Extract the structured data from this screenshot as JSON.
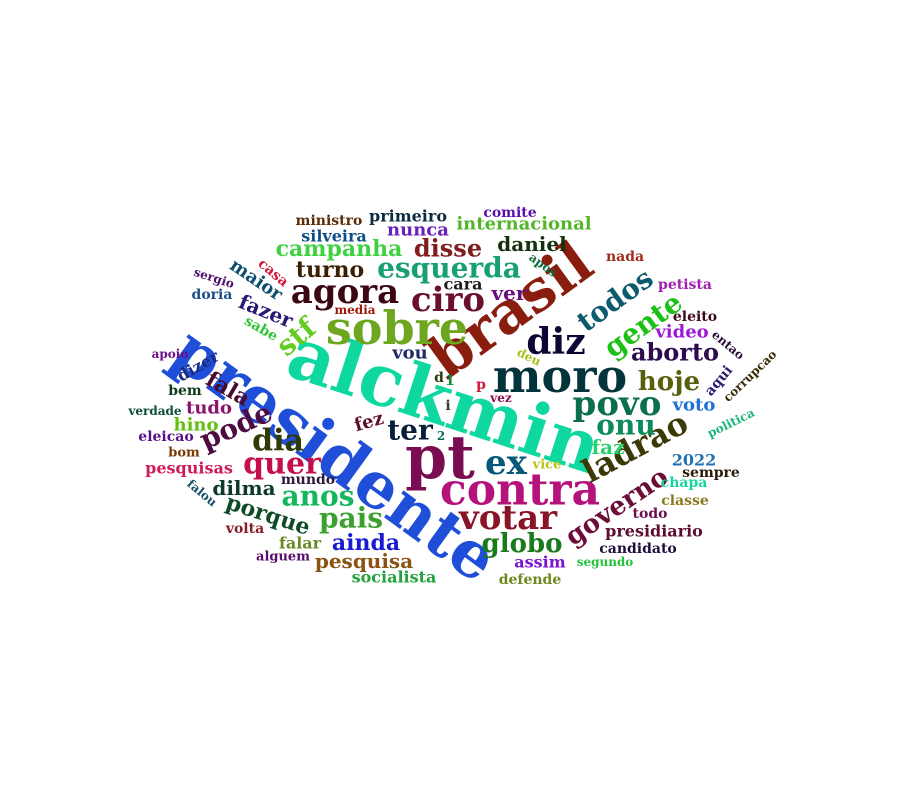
{
  "words": [
    {
      "text": "alckmin",
      "color": "#0ed89f"
    },
    {
      "text": "presidente",
      "color": "#1f4fd8"
    },
    {
      "text": "brasil",
      "color": "#8a1e0e"
    },
    {
      "text": "pt",
      "color": "#7a0d52"
    },
    {
      "text": "moro",
      "color": "#03343b"
    },
    {
      "text": "contra",
      "color": "#b5127c"
    },
    {
      "text": "sobre",
      "color": "#6da71f"
    },
    {
      "text": "diz",
      "color": "#0d0533"
    },
    {
      "text": "ex",
      "color": "#05587a"
    },
    {
      "text": "votar",
      "color": "#8a1427"
    },
    {
      "text": "povo",
      "color": "#0b6e4f"
    },
    {
      "text": "ladrao",
      "color": "#3b3a07"
    },
    {
      "text": "agora",
      "color": "#3c0613"
    },
    {
      "text": "ciro",
      "color": "#6b0f2e"
    },
    {
      "text": "esquerda",
      "color": "#17a074"
    },
    {
      "text": "todos",
      "color": "#0c5a6d"
    },
    {
      "text": "gente",
      "color": "#1dc017"
    },
    {
      "text": "onu",
      "color": "#0c8a5c"
    },
    {
      "text": "globo",
      "color": "#1b7a1c"
    },
    {
      "text": "governo",
      "color": "#6b0c3a"
    },
    {
      "text": "hoje",
      "color": "#58600d"
    },
    {
      "text": "aborto",
      "color": "#2f0a4e"
    },
    {
      "text": "quer",
      "color": "#c40f4c"
    },
    {
      "text": "dia",
      "color": "#2e3b06"
    },
    {
      "text": "anos",
      "color": "#13b85d"
    },
    {
      "text": "pais",
      "color": "#3ca12e"
    },
    {
      "text": "pode",
      "color": "#4d0b43"
    },
    {
      "text": "stf",
      "color": "#63cc21"
    },
    {
      "text": "ter",
      "color": "#071f3b"
    },
    {
      "text": "disse",
      "color": "#801d1d"
    },
    {
      "text": "campanha",
      "color": "#40d142"
    },
    {
      "text": "turno",
      "color": "#3a1f05"
    },
    {
      "text": "ainda",
      "color": "#1a1ad6"
    },
    {
      "text": "porque",
      "color": "#0d4a25"
    },
    {
      "text": "fala",
      "color": "#4a0a2f"
    },
    {
      "text": "daniel",
      "color": "#13310d"
    },
    {
      "text": "internacional",
      "color": "#54b52a"
    },
    {
      "text": "ver",
      "color": "#6b0d7a"
    },
    {
      "text": "faz",
      "color": "#27d06a"
    },
    {
      "text": "fazer",
      "color": "#2a1673"
    },
    {
      "text": "pesquisa",
      "color": "#8a5213"
    },
    {
      "text": "dilma",
      "color": "#0e3b29"
    },
    {
      "text": "maior",
      "color": "#0c4d6e"
    },
    {
      "text": "nunca",
      "color": "#6a1fb8"
    },
    {
      "text": "silveira",
      "color": "#0d4e8a"
    },
    {
      "text": "primeiro",
      "color": "#0a2a40"
    },
    {
      "text": "cara",
      "color": "#1d1d1d"
    },
    {
      "text": "voto",
      "color": "#1e6fd6"
    },
    {
      "text": "vou",
      "color": "#1c2b63"
    },
    {
      "text": "video",
      "color": "#9d19d6"
    },
    {
      "text": "2022",
      "color": "#2171b5"
    },
    {
      "text": "tudo",
      "color": "#8a136b"
    },
    {
      "text": "dizer",
      "color": "#1c2a80"
    },
    {
      "text": "hino",
      "color": "#62bf10"
    },
    {
      "text": "fez",
      "color": "#5c0d2b"
    },
    {
      "text": "socialista",
      "color": "#22a33c"
    },
    {
      "text": "assim",
      "color": "#7a12d0"
    },
    {
      "text": "defende",
      "color": "#6d8a1e"
    },
    {
      "text": "falar",
      "color": "#6b8a23"
    },
    {
      "text": "mundo",
      "color": "#2e1a3a"
    },
    {
      "text": "pesquisas",
      "color": "#d01a5a"
    },
    {
      "text": "eleicao",
      "color": "#5a0e8a"
    },
    {
      "text": "presidiario",
      "color": "#5c0d2e"
    },
    {
      "text": "candidato",
      "color": "#1c0d3a"
    },
    {
      "text": "chapa",
      "color": "#14d6a0"
    },
    {
      "text": "classe",
      "color": "#8a7a1e"
    },
    {
      "text": "sempre",
      "color": "#2b1a07"
    },
    {
      "text": "todo",
      "color": "#6b0e4a"
    },
    {
      "text": "comite",
      "color": "#5a0eab"
    },
    {
      "text": "ministro",
      "color": "#5c2c07"
    },
    {
      "text": "aqui",
      "color": "#2a1f73"
    },
    {
      "text": "eleito",
      "color": "#3a0a1a"
    },
    {
      "text": "casa",
      "color": "#d0183a"
    },
    {
      "text": "doria",
      "color": "#1a4f8a"
    },
    {
      "text": "bem",
      "color": "#0d3b1a"
    },
    {
      "text": "nada",
      "color": "#a12b1e"
    },
    {
      "text": "petista",
      "color": "#a020b0"
    },
    {
      "text": "sabe",
      "color": "#33c23a"
    },
    {
      "text": "sergio",
      "color": "#4a0d6b"
    },
    {
      "text": "bom",
      "color": "#7a3a07"
    },
    {
      "text": "volta",
      "color": "#8a1e27"
    },
    {
      "text": "alguem",
      "color": "#5a0e6b"
    },
    {
      "text": "media",
      "color": "#a0180d"
    },
    {
      "text": "apoio",
      "color": "#6a0d8a"
    },
    {
      "text": "verdade",
      "color": "#0d4a3a"
    },
    {
      "text": "falou",
      "color": "#1a4f6b"
    },
    {
      "text": "entao",
      "color": "#2a0d3b"
    },
    {
      "text": "corrupcao",
      "color": "#3b2a07"
    },
    {
      "text": "politica",
      "color": "#1db67a"
    },
    {
      "text": "segundo",
      "color": "#22c23a"
    },
    {
      "text": "apos",
      "color": "#0d6b3a"
    },
    {
      "text": "deu",
      "color": "#a6c21a"
    },
    {
      "text": "vice",
      "color": "#b9c21a"
    },
    {
      "text": "vez",
      "color": "#8a0e4a"
    },
    {
      "text": "d",
      "color": "#2a3b07"
    },
    {
      "text": "1",
      "color": "#0d8a3a"
    },
    {
      "text": "p",
      "color": "#d0183a"
    },
    {
      "text": "2",
      "color": "#0d6b5a"
    },
    {
      "text": "i",
      "color": "#3b3b3b"
    }
  ]
}
